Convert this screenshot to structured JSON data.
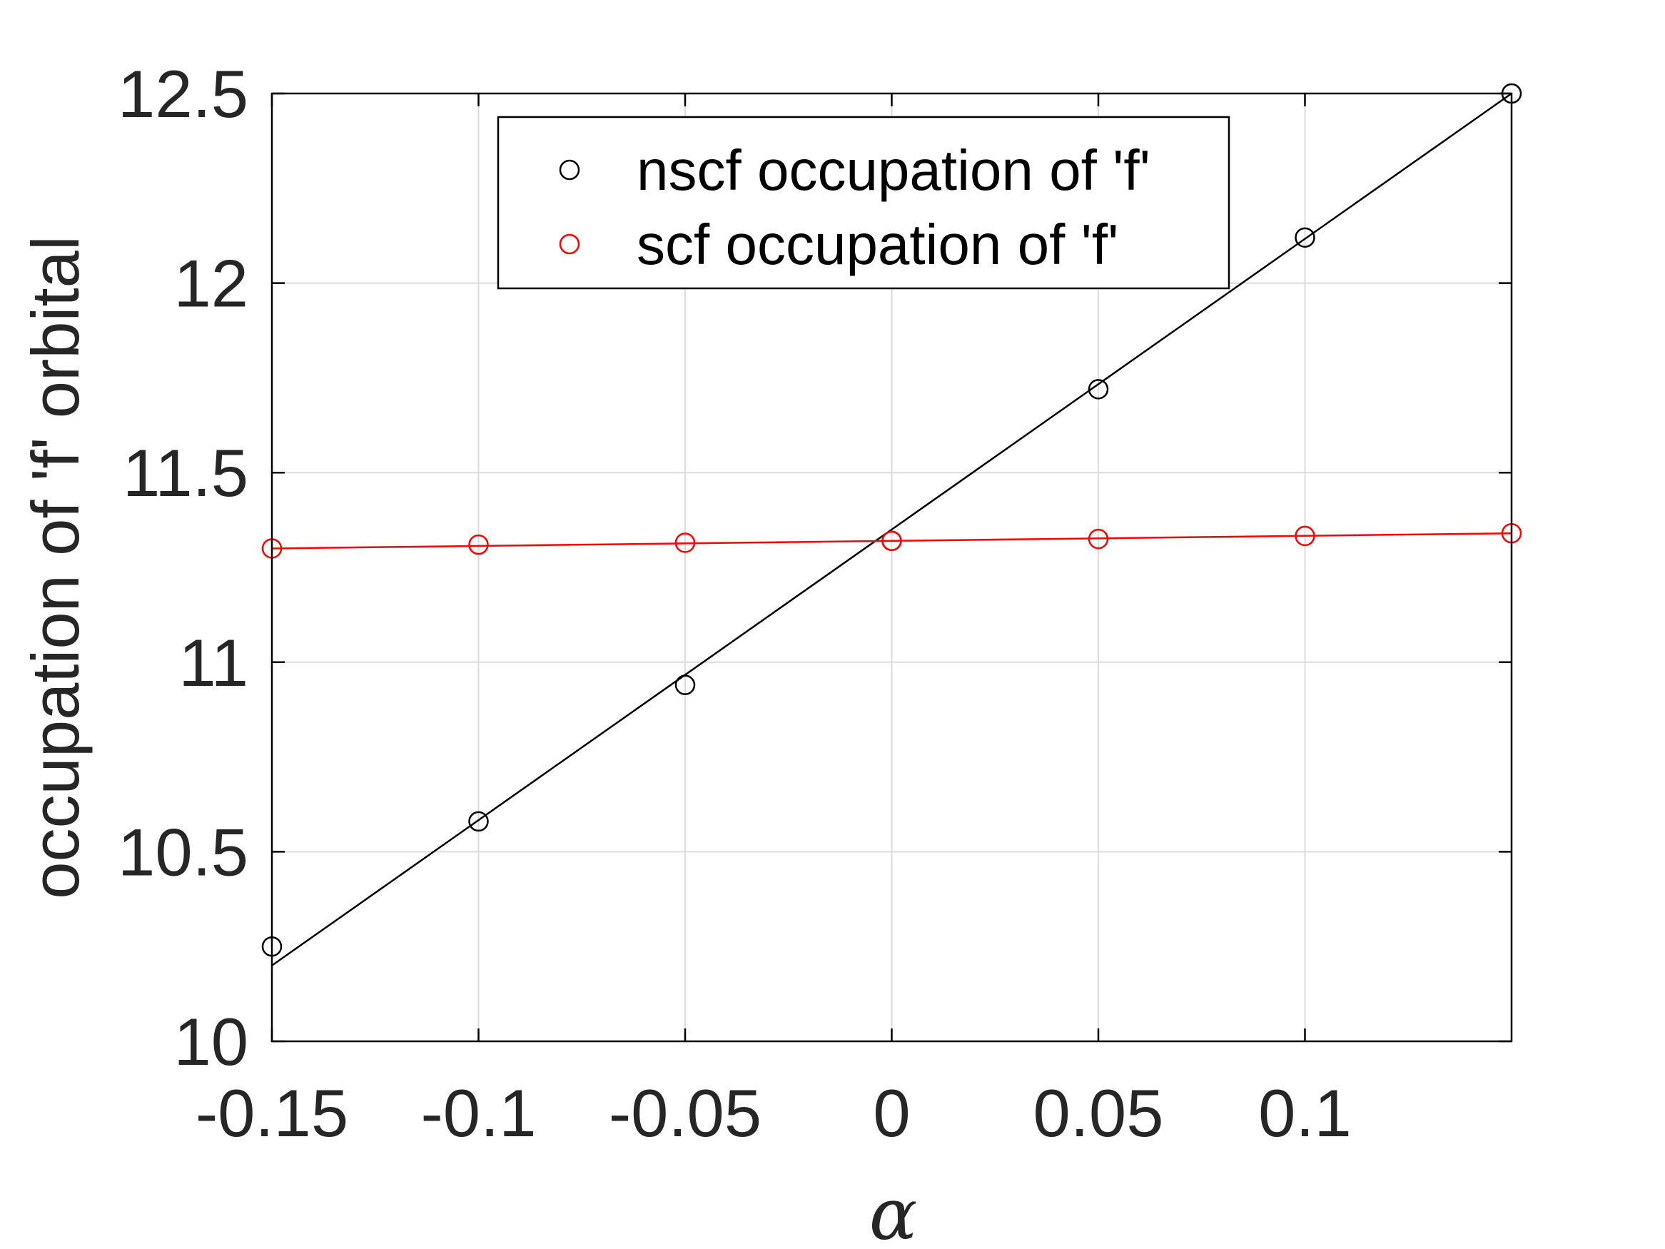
{
  "chart_data": {
    "type": "scatter",
    "title": "",
    "xlabel": "α",
    "ylabel": "occupation of 'f' orbital",
    "xlim": [
      -0.15,
      0.15
    ],
    "ylim": [
      10,
      12.5
    ],
    "x_ticks": [
      -0.15,
      -0.1,
      -0.05,
      0,
      0.05,
      0.1
    ],
    "x_tick_labels": [
      "-0.15",
      "-0.1",
      "-0.05",
      "0",
      "0.05",
      "0.1"
    ],
    "y_ticks": [
      10,
      10.5,
      11,
      11.5,
      12,
      12.5
    ],
    "y_tick_labels": [
      "10",
      "10.5",
      "11",
      "11.5",
      "12",
      "12.5"
    ],
    "grid": true,
    "legend_position": "top-right",
    "x": [
      -0.15,
      -0.1,
      -0.05,
      0,
      0.05,
      0.1,
      0.15
    ],
    "series": [
      {
        "name": "nscf occupation of 'f'",
        "color": "#000000",
        "marker": "circle",
        "values": [
          10.25,
          10.58,
          10.94,
          11.32,
          11.72,
          12.12,
          12.5
        ],
        "fit_line": [
          10.2,
          12.5
        ]
      },
      {
        "name": "scf occupation of 'f'",
        "color": "#ff0000",
        "marker": "circle",
        "values": [
          11.3,
          11.31,
          11.315,
          11.32,
          11.325,
          11.333,
          11.34
        ],
        "fit_line": [
          11.3,
          11.34
        ]
      }
    ]
  }
}
